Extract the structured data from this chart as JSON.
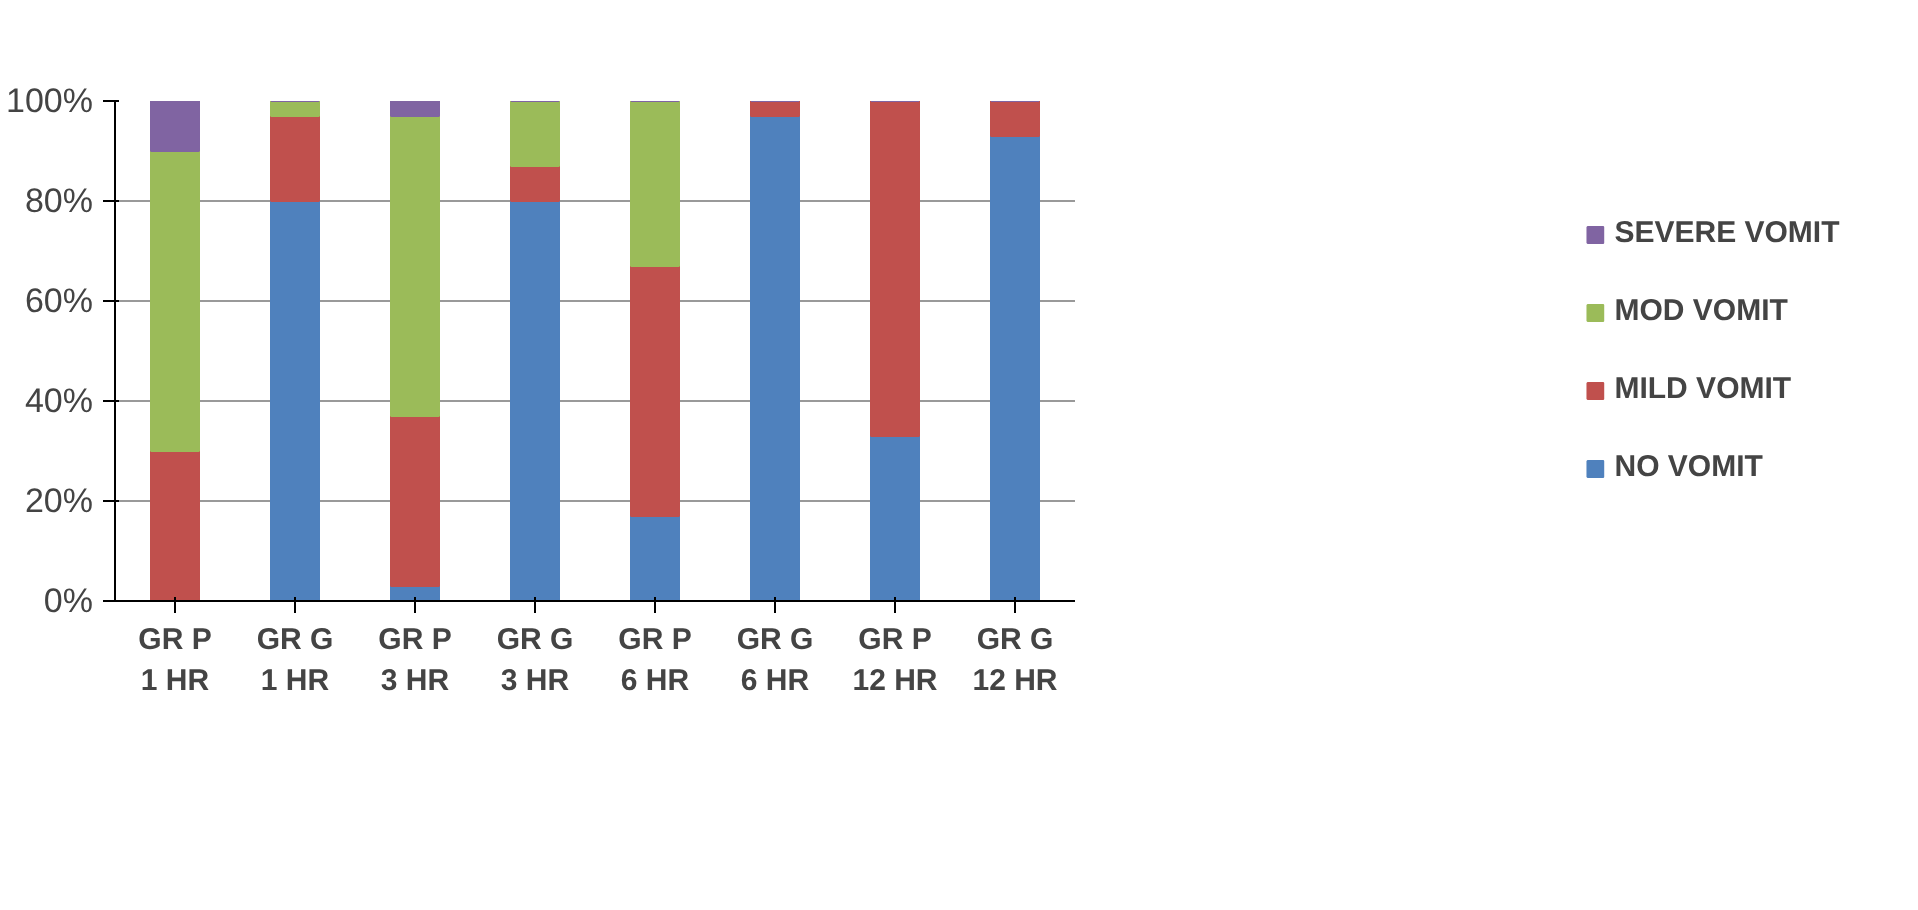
{
  "chart_data": {
    "type": "bar",
    "stacked": true,
    "categories": [
      "GR P 1 HR",
      "GR G 1 HR",
      "GR P 3 HR",
      "GR G 3 HR",
      "GR P 6 HR",
      "GR G 6 HR",
      "GR P 12 HR",
      "GR G 12 HR"
    ],
    "series": [
      {
        "name": "NO VOMIT",
        "color": "#4f81bd",
        "values": [
          0,
          80,
          3,
          80,
          17,
          97,
          33,
          93
        ]
      },
      {
        "name": "MILD VOMIT",
        "color": "#c0504d",
        "values": [
          30,
          17,
          34,
          7,
          50,
          3,
          67,
          7
        ]
      },
      {
        "name": "MOD VOMIT",
        "color": "#9bbb59",
        "values": [
          60,
          3,
          60,
          13,
          33,
          0,
          0,
          0
        ]
      },
      {
        "name": "SEVERE VOMIT",
        "color": "#8064a2",
        "values": [
          10,
          0,
          3,
          0,
          0,
          0,
          0,
          0
        ]
      }
    ],
    "ylim": [
      0,
      100
    ],
    "yticks": [
      {
        "value": 0,
        "label": "0%"
      },
      {
        "value": 20,
        "label": "20%"
      },
      {
        "value": 40,
        "label": "40%"
      },
      {
        "value": 60,
        "label": "60%"
      },
      {
        "value": 80,
        "label": "80%"
      },
      {
        "value": 100,
        "label": "100%"
      }
    ],
    "grid": "y",
    "legend": "right"
  }
}
